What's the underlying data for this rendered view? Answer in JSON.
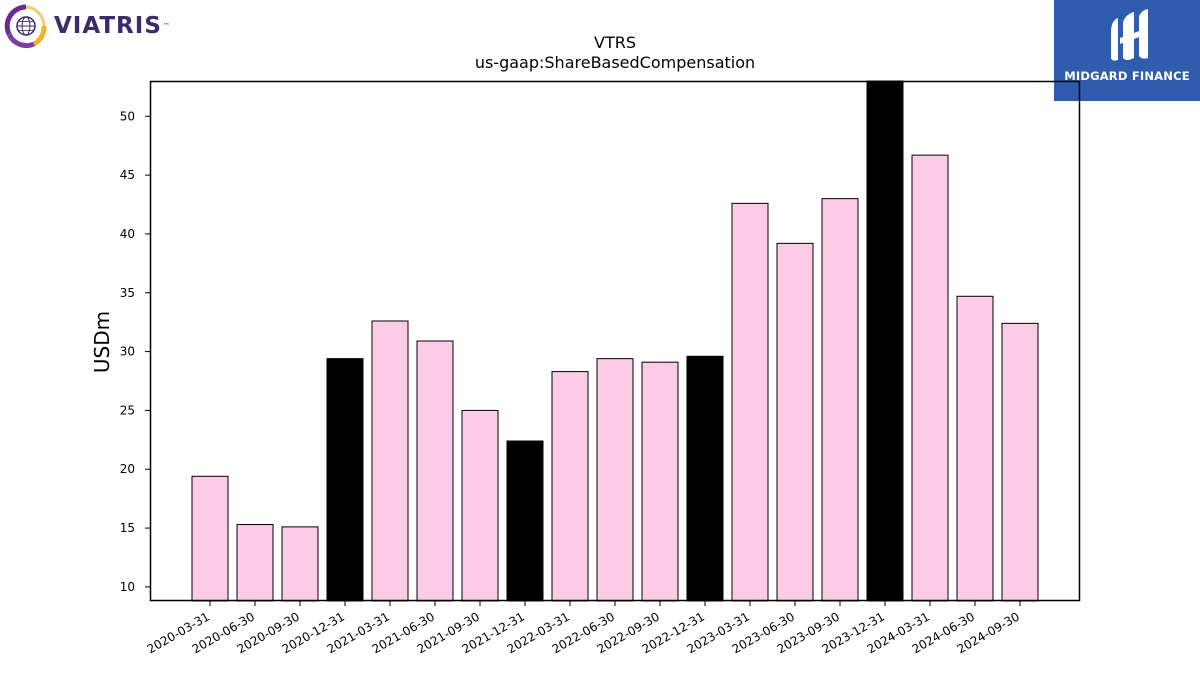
{
  "brand": {
    "left_logo_text": "VIATRIS",
    "left_logo_tm": "™",
    "right_logo_text": "MIDGARD FINANCE"
  },
  "chart_data": {
    "type": "bar",
    "title": "VTRS",
    "subtitle": "us-gaap:ShareBasedCompensation",
    "ylabel": "USDm",
    "xlabel": "",
    "ylim": [
      8.8,
      53
    ],
    "yticks": [
      10,
      15,
      20,
      25,
      30,
      35,
      40,
      45,
      50
    ],
    "categories": [
      "2020-03-31",
      "2020-06-30",
      "2020-09-30",
      "2020-12-31",
      "2021-03-31",
      "2021-06-30",
      "2021-09-30",
      "2021-12-31",
      "2022-03-31",
      "2022-06-30",
      "2022-09-30",
      "2022-12-31",
      "2023-03-31",
      "2023-06-30",
      "2023-09-30",
      "2023-12-31",
      "2024-03-31",
      "2024-06-30",
      "2024-09-30"
    ],
    "values": [
      19.4,
      15.3,
      15.1,
      29.4,
      32.6,
      30.9,
      25.0,
      22.4,
      28.3,
      29.4,
      29.1,
      29.6,
      42.6,
      39.2,
      43.0,
      53.0,
      46.7,
      34.7,
      32.4
    ],
    "highlight": [
      false,
      false,
      false,
      true,
      false,
      false,
      false,
      true,
      false,
      false,
      false,
      true,
      false,
      false,
      false,
      true,
      false,
      false,
      false
    ],
    "colors": {
      "normal": "#fccbe6",
      "highlight": "#000000",
      "edge": "#000000"
    },
    "grid": false,
    "legend": "none"
  }
}
